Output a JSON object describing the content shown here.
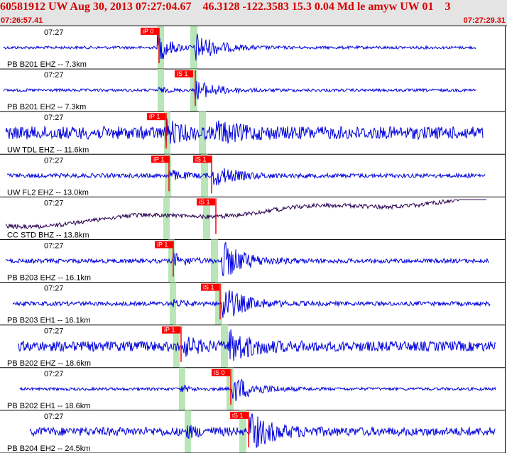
{
  "header": {
    "title": "60581912 UW Aug 30, 2013 07:27:04.67    46.3128 -122.3583 15.3 0.04 Md le amyw UW 01    3",
    "start_time": "07:26:57.41",
    "end_time": "07:27:29.31"
  },
  "colors": {
    "trace": "#0000dd",
    "trace_dark": "#2a0050",
    "pick": "#ff0000",
    "band": "#b8e6b8",
    "header_text": "#d40000"
  },
  "traces": [
    {
      "time_label": "07:27",
      "station_label": "PB B201 EHZ -- 7.3km",
      "pick": {
        "label": "iP 0"
      }
    },
    {
      "time_label": "07:27",
      "station_label": "PB B201 EH2 -- 7.3km",
      "pick": {
        "label": "iS 1"
      }
    },
    {
      "time_label": "07:27",
      "station_label": "UW TDL EHZ -- 11.6km",
      "pick": {
        "label": "iP 1"
      }
    },
    {
      "time_label": "07:27",
      "station_label": "UW FL2 EHZ -- 13.0km",
      "pick": {
        "label": "iP 1"
      },
      "pick2": {
        "label": "iS 1"
      }
    },
    {
      "time_label": "07:27",
      "station_label": "CC STD BHZ -- 13.8km",
      "pick": {
        "label": "iS 1"
      }
    },
    {
      "time_label": "07:27",
      "station_label": "PB B203 EHZ -- 16.1km",
      "pick": {
        "label": "iP 1"
      }
    },
    {
      "time_label": "07:27",
      "station_label": "PB B203 EH1 -- 16.1km",
      "pick": {
        "label": "iS 1"
      }
    },
    {
      "time_label": "07:27",
      "station_label": "PB B202 EHZ -- 18.6km",
      "pick": {
        "label": "iP 1"
      }
    },
    {
      "time_label": "07:27",
      "station_label": "PB B202 EH1 -- 18.6km",
      "pick": {
        "label": "iS 0"
      }
    },
    {
      "time_label": "07:27",
      "station_label": "PB B204 EH2 -- 24.5km",
      "pick": {
        "label": "iS 1"
      }
    }
  ]
}
